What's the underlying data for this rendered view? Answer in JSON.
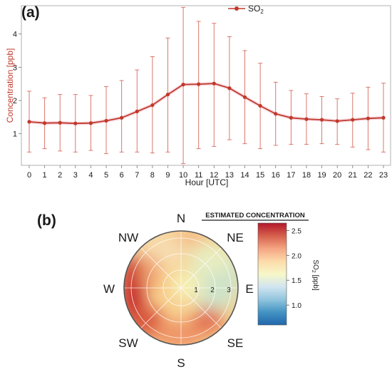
{
  "panel_a_label": "(a)",
  "panel_b_label": "(b)",
  "chart_data": [
    {
      "type": "line",
      "xlabel": "Hour [UTC]",
      "ylabel": "Concentration [ppb]",
      "x": [
        0,
        1,
        2,
        3,
        4,
        5,
        6,
        7,
        8,
        9,
        10,
        11,
        12,
        13,
        14,
        15,
        16,
        17,
        18,
        19,
        20,
        21,
        22,
        23
      ],
      "x_ticks": [
        "0",
        "1",
        "2",
        "3",
        "4",
        "5",
        "6",
        "7",
        "8",
        "9",
        "10",
        "11",
        "12",
        "13",
        "14",
        "15",
        "16",
        "17",
        "18",
        "19",
        "20",
        "21",
        "22",
        "23"
      ],
      "y_ticks": [
        "1",
        "2",
        "3",
        "4"
      ],
      "ylim": [
        0.05,
        4.85
      ],
      "legend": {
        "label": "SO",
        "subscript": "2",
        "position": "top-center"
      },
      "series": [
        {
          "name": "SO2",
          "color": "#c0392b",
          "values": [
            1.36,
            1.32,
            1.33,
            1.31,
            1.32,
            1.39,
            1.48,
            1.67,
            1.86,
            2.18,
            2.48,
            2.49,
            2.51,
            2.37,
            2.1,
            1.84,
            1.6,
            1.48,
            1.44,
            1.42,
            1.38,
            1.42,
            1.46,
            1.48
          ],
          "error_low": [
            0.45,
            0.55,
            0.48,
            0.45,
            0.5,
            0.4,
            0.45,
            0.45,
            0.42,
            0.45,
            0.1,
            0.55,
            0.62,
            0.82,
            0.7,
            0.55,
            0.65,
            0.68,
            0.68,
            0.7,
            0.68,
            0.6,
            0.52,
            0.45
          ],
          "error_high": [
            2.28,
            2.08,
            2.18,
            2.18,
            2.15,
            2.42,
            2.6,
            2.92,
            3.32,
            3.88,
            4.8,
            4.38,
            4.32,
            3.92,
            3.5,
            3.12,
            2.55,
            2.3,
            2.2,
            2.12,
            2.05,
            2.22,
            2.4,
            2.52
          ]
        }
      ]
    },
    {
      "type": "heatmap",
      "subtype": "polar",
      "directions": [
        "N",
        "NE",
        "E",
        "SE",
        "S",
        "SW",
        "W",
        "NW"
      ],
      "radial_ticks": [
        "1",
        "2",
        "3"
      ],
      "colorbar": {
        "title": "ESTIMATED CONCENTRATION",
        "label": "SO",
        "label_subscript": "2",
        "label_unit": "[ppb]",
        "ticks": [
          "1.0",
          "1.5",
          "2.0",
          "2.5"
        ],
        "range": [
          0.6,
          2.65
        ],
        "colors": [
          "#2166ac",
          "#4393c3",
          "#92c5de",
          "#d1e5f0",
          "#f7f7c8",
          "#fddbaa",
          "#f4a582",
          "#d6604d",
          "#b2182b"
        ]
      },
      "summary": "Highest SO2 concentrations from the W and SW sectors at higher wind speeds, moderate from S and NW, lowest toward the NE and E."
    }
  ],
  "colors": {
    "series": "#c0392b",
    "text": "#1a1a1a",
    "axis_label_red": "#c0392b"
  }
}
